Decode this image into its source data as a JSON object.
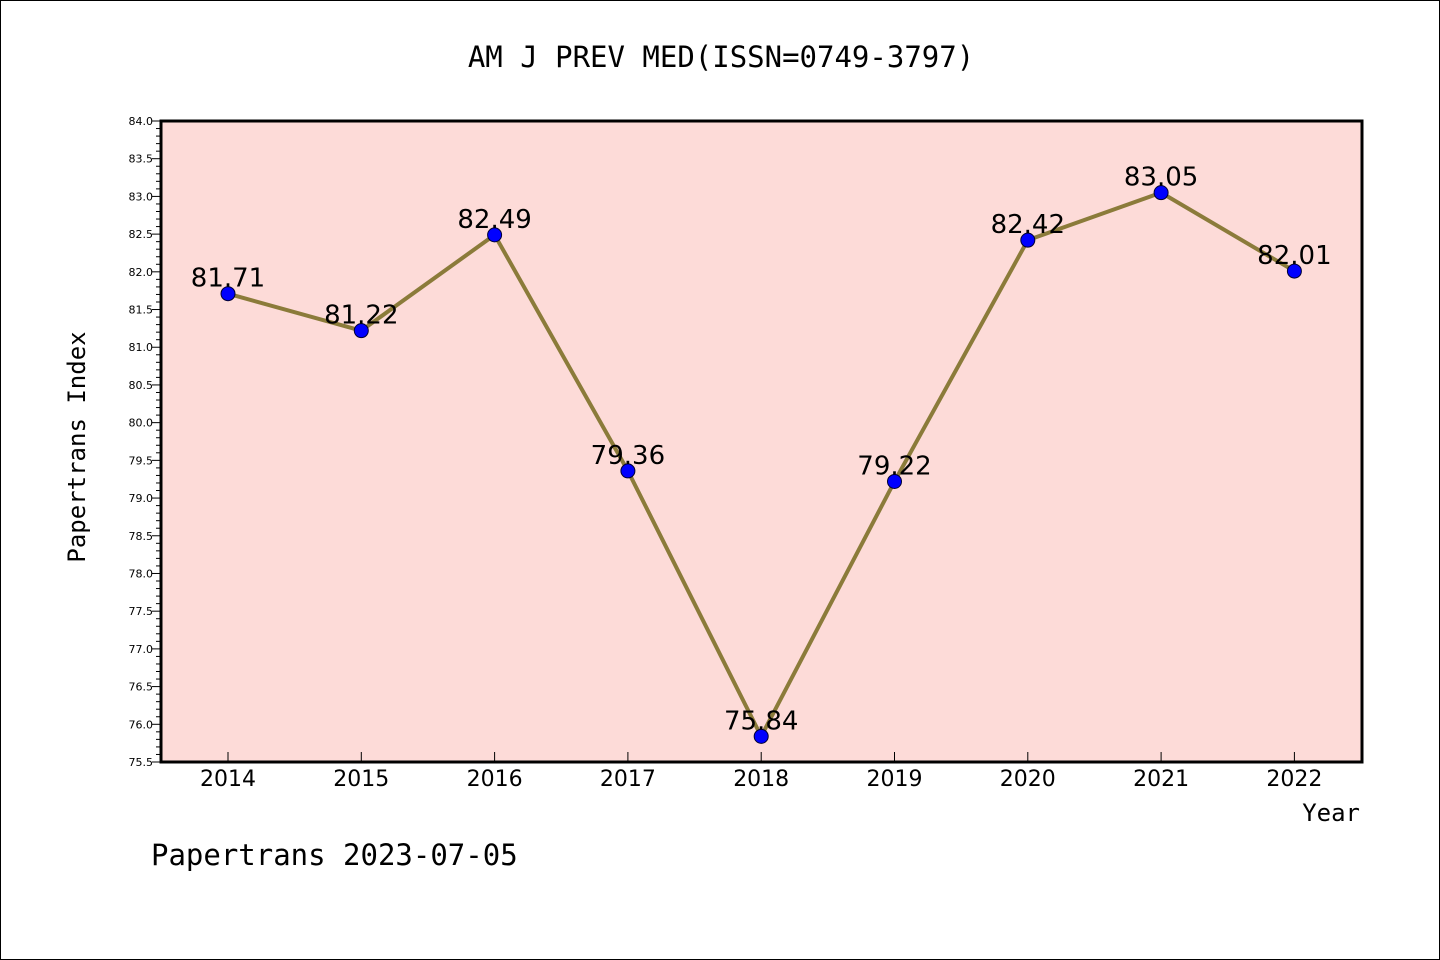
{
  "chart_data": {
    "type": "line",
    "title": "AM J PREV MED(ISSN=0749-3797)",
    "xlabel": "Year",
    "ylabel": "Papertrans Index",
    "categories": [
      "2014",
      "2015",
      "2016",
      "2017",
      "2018",
      "2019",
      "2020",
      "2021",
      "2022"
    ],
    "series": [
      {
        "values": [
          81.71,
          81.22,
          82.49,
          79.36,
          75.84,
          79.22,
          82.42,
          83.05,
          82.01
        ],
        "labels": [
          "81.71",
          "81.22",
          "82.49",
          "79.36",
          "75.84",
          "79.22",
          "82.42",
          "83.05",
          "82.01"
        ],
        "line_color": "#8b7b3a",
        "marker_color": "#0000ff"
      }
    ],
    "ylim": [
      75.5,
      84.0
    ],
    "y_ticks": [
      "75.5",
      "76.0",
      "76.5",
      "77.0",
      "77.5",
      "78.0",
      "78.5",
      "79.0",
      "79.5",
      "80.0",
      "80.5",
      "81.0",
      "81.5",
      "82.0",
      "82.5",
      "83.0",
      "83.5",
      "84.0"
    ],
    "grid": false,
    "plot_background": "#fddbd8",
    "footer": "Papertrans 2023-07-05"
  }
}
